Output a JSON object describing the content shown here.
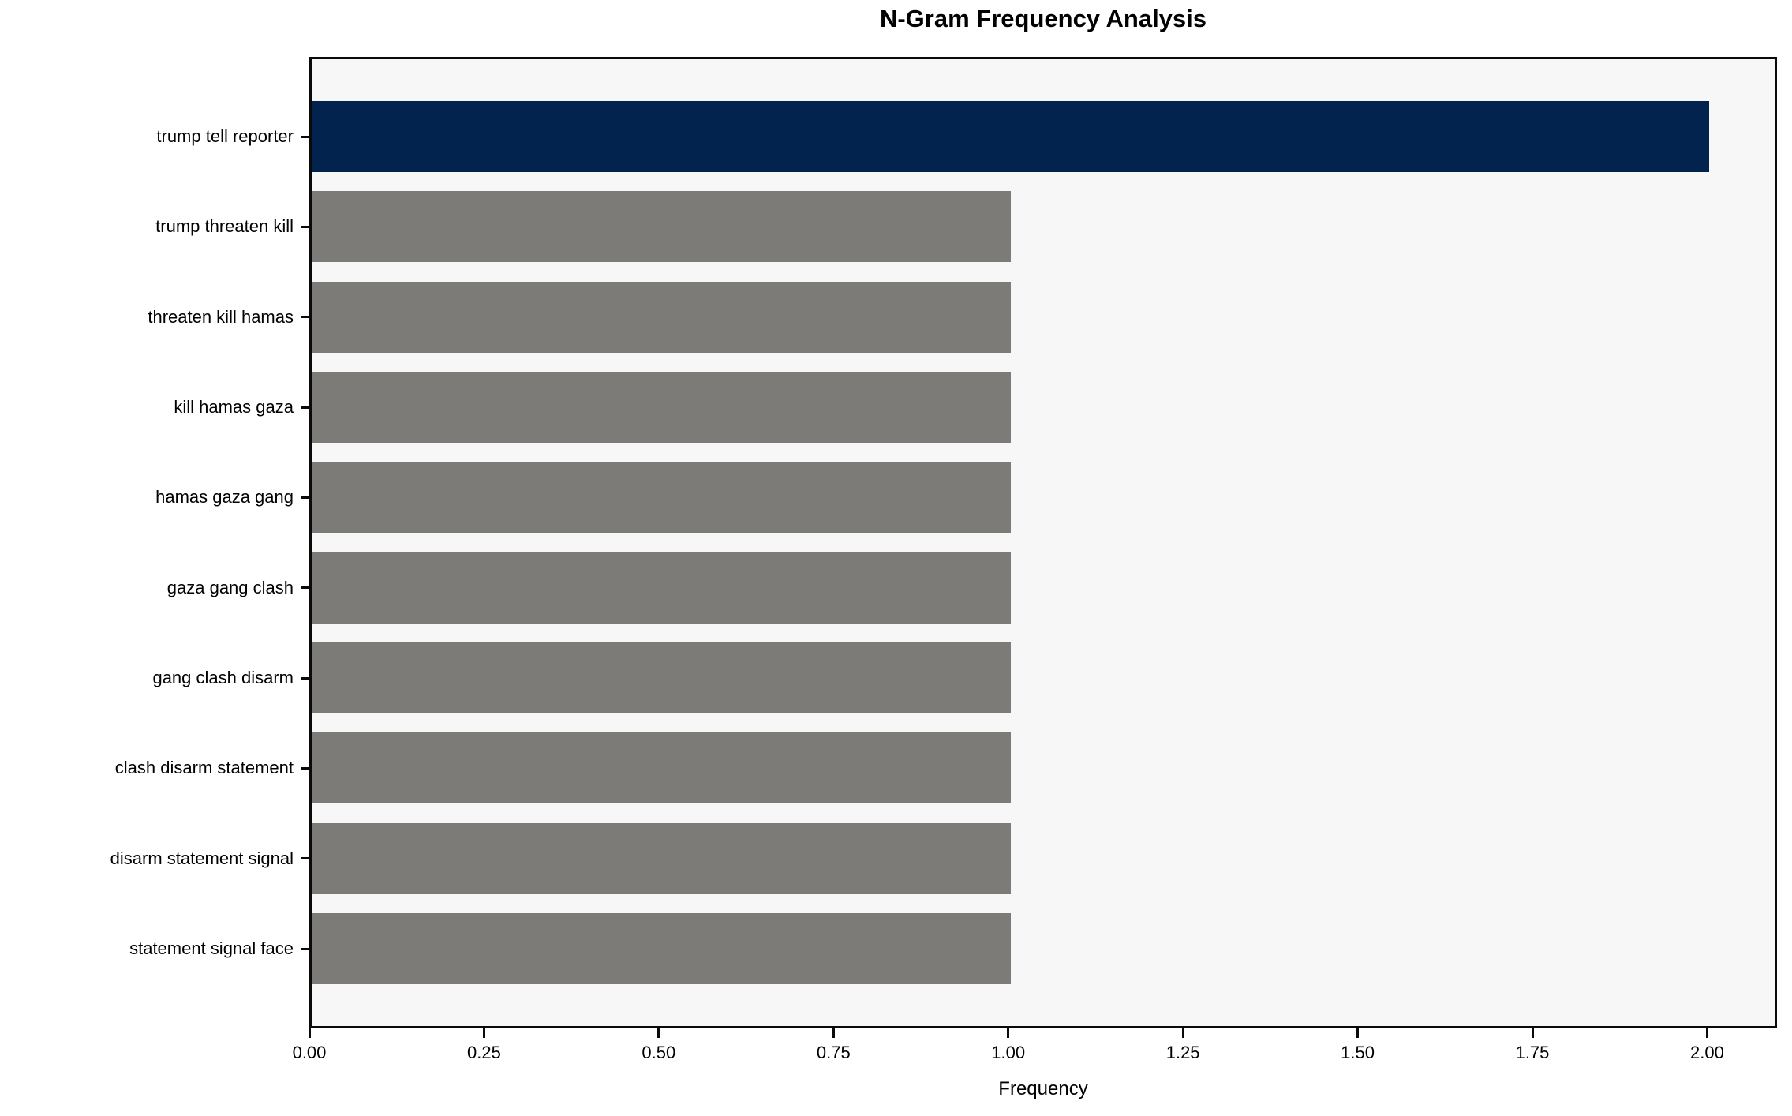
{
  "chart_data": {
    "type": "bar",
    "orientation": "horizontal",
    "title": "N-Gram Frequency Analysis",
    "xlabel": "Frequency",
    "ylabel": "",
    "categories": [
      "trump tell reporter",
      "trump threaten kill",
      "threaten kill hamas",
      "kill hamas gaza",
      "hamas gaza gang",
      "gaza gang clash",
      "gang clash disarm",
      "clash disarm statement",
      "disarm statement signal",
      "statement signal face"
    ],
    "values": [
      2,
      1,
      1,
      1,
      1,
      1,
      1,
      1,
      1,
      1
    ],
    "bar_colors": [
      "#02234d",
      "#7c7b77",
      "#7c7b77",
      "#7c7b77",
      "#7c7b77",
      "#7c7b77",
      "#7c7b77",
      "#7c7b77",
      "#7c7b77",
      "#7c7b77"
    ],
    "highlight_color": "#02234d",
    "default_bar_color": "#7c7b77",
    "plot_background": "#f7f7f7",
    "figure_background": "#ffffff",
    "axis_color": "#0a0a0a",
    "xlim": [
      0,
      2.1
    ],
    "xticks": {
      "values": [
        0,
        0.25,
        0.5,
        0.75,
        1.0,
        1.25,
        1.5,
        1.75,
        2.0
      ],
      "labels": [
        "0.00",
        "0.25",
        "0.50",
        "0.75",
        "1.00",
        "1.25",
        "1.50",
        "1.75",
        "2.00"
      ]
    },
    "grid": false,
    "legend": null
  }
}
